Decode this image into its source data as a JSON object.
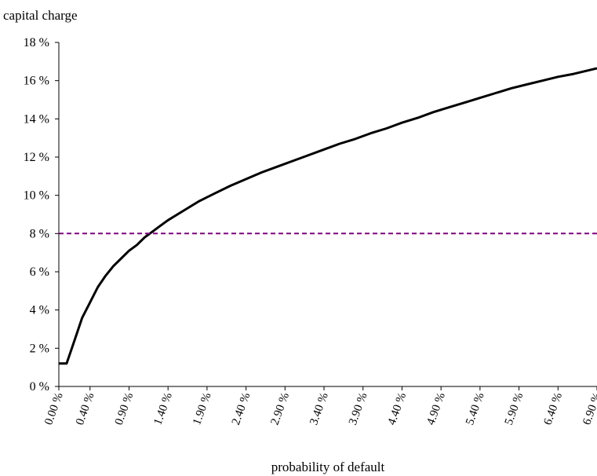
{
  "chart_data": {
    "type": "line",
    "title": "",
    "ylabel": "capital charge",
    "xlabel": "probability of default",
    "ylim": [
      0,
      18
    ],
    "y_ticks": [
      0,
      2,
      4,
      6,
      8,
      10,
      12,
      14,
      16,
      18
    ],
    "y_tick_labels": [
      "0 %",
      "2 %",
      "4 %",
      "6 %",
      "8 %",
      "10 %",
      "12 %",
      "14 %",
      "16 %",
      "18 %"
    ],
    "x_tick_labels": [
      "0.00 %",
      "0.40 %",
      "0.90 %",
      "1.40 %",
      "1.90 %",
      "2.40 %",
      "2.90 %",
      "3.40 %",
      "3.90 %",
      "4.40 %",
      "4.90 %",
      "5.40 %",
      "5.90 %",
      "6.40 %",
      "6.90 %"
    ],
    "x_tick_values": [
      0.0,
      0.4,
      0.9,
      1.4,
      1.9,
      2.4,
      2.9,
      3.4,
      3.9,
      4.4,
      4.9,
      5.4,
      5.9,
      6.4,
      6.9
    ],
    "xlim": [
      0.0,
      6.9
    ],
    "grid": false,
    "series": [
      {
        "color": "#000000",
        "style": "solid",
        "x": [
          0.0,
          0.1,
          0.2,
          0.3,
          0.4,
          0.5,
          0.6,
          0.7,
          0.8,
          0.9,
          1.0,
          1.1,
          1.2,
          1.3,
          1.4,
          1.6,
          1.8,
          2.0,
          2.2,
          2.4,
          2.6,
          2.8,
          3.0,
          3.2,
          3.4,
          3.6,
          3.8,
          4.0,
          4.2,
          4.4,
          4.6,
          4.8,
          5.0,
          5.2,
          5.4,
          5.6,
          5.8,
          6.0,
          6.2,
          6.4,
          6.6,
          6.8,
          6.9
        ],
        "y": [
          1.2,
          1.2,
          2.4,
          3.6,
          4.4,
          5.2,
          5.8,
          6.3,
          6.7,
          7.1,
          7.4,
          7.8,
          8.1,
          8.4,
          8.7,
          9.2,
          9.7,
          10.1,
          10.5,
          10.85,
          11.2,
          11.5,
          11.8,
          12.1,
          12.4,
          12.7,
          12.95,
          13.25,
          13.5,
          13.8,
          14.05,
          14.35,
          14.6,
          14.85,
          15.1,
          15.35,
          15.6,
          15.8,
          16.0,
          16.2,
          16.35,
          16.55,
          16.65
        ]
      },
      {
        "color": "#800080",
        "style": "dashed",
        "x": [
          0.0,
          6.9
        ],
        "y": [
          8,
          8
        ]
      }
    ]
  }
}
